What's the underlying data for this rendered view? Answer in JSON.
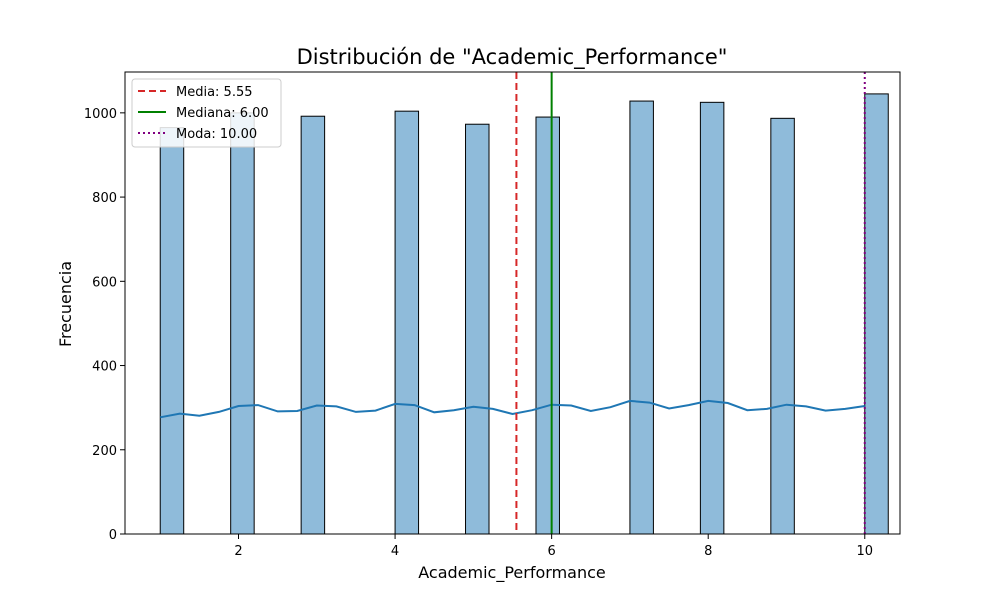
{
  "chart_data": {
    "type": "bar",
    "title": "Distribución de \"Academic_Performance\"",
    "xlabel": "Academic_Performance",
    "ylabel": "Frecuencia",
    "xlim": [
      0.55,
      10.45
    ],
    "ylim": [
      0,
      1097
    ],
    "xticks": [
      2,
      4,
      6,
      8,
      10
    ],
    "yticks": [
      0,
      200,
      400,
      600,
      800,
      1000
    ],
    "bin_width": 0.3,
    "bins": [
      {
        "start": 1.0,
        "value": 965
      },
      {
        "start": 1.9,
        "value": 1000
      },
      {
        "start": 2.8,
        "value": 992
      },
      {
        "start": 4.0,
        "value": 1004
      },
      {
        "start": 4.9,
        "value": 973
      },
      {
        "start": 5.8,
        "value": 990
      },
      {
        "start": 7.0,
        "value": 1028
      },
      {
        "start": 7.9,
        "value": 1025
      },
      {
        "start": 8.8,
        "value": 987
      },
      {
        "start": 10.0,
        "value": 1045
      }
    ],
    "bar_color": "#8fbbda",
    "kde": {
      "color": "#1f77b4",
      "x": [
        1.0,
        1.25,
        1.5,
        1.75,
        2.0,
        2.25,
        2.5,
        2.75,
        3.0,
        3.25,
        3.5,
        3.75,
        4.0,
        4.25,
        4.5,
        4.75,
        5.0,
        5.25,
        5.5,
        5.75,
        6.0,
        6.25,
        6.5,
        6.75,
        7.0,
        7.25,
        7.5,
        7.75,
        8.0,
        8.25,
        8.5,
        8.75,
        9.0,
        9.25,
        9.5,
        9.75,
        10.0
      ],
      "y": [
        277,
        286,
        281,
        290,
        304,
        306,
        291,
        292,
        305,
        303,
        290,
        293,
        309,
        306,
        289,
        294,
        302,
        297,
        285,
        294,
        307,
        305,
        292,
        301,
        316,
        312,
        298,
        306,
        316,
        311,
        294,
        297,
        307,
        303,
        293,
        297,
        304
      ]
    },
    "reference_lines": [
      {
        "label": "Media: 5.55",
        "x": 5.55,
        "color": "#d62728",
        "style": "dashed"
      },
      {
        "label": "Mediana: 6.00",
        "x": 6.0,
        "color": "#008000",
        "style": "solid"
      },
      {
        "label": "Moda: 10.00",
        "x": 10.0,
        "color": "#800080",
        "style": "dotted"
      }
    ],
    "legend_position": "top-left",
    "grid": false
  }
}
